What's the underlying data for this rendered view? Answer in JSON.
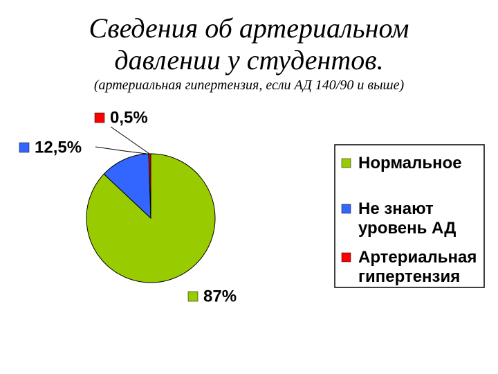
{
  "chart_data": {
    "type": "pie",
    "title": "Сведения об артериальном давлении у студентов.",
    "subtitle": "(артериальная гипертензия, если АД 140/90 и выше)",
    "categories": [
      "Нормальное",
      "Не знают уровень АД",
      "Артериальная гипертензия"
    ],
    "values": [
      87,
      12.5,
      0.5
    ],
    "value_labels": [
      "87%",
      "12,5%",
      "0,5%"
    ],
    "colors": [
      "#99cc00",
      "#3366ff",
      "#ff0000"
    ]
  }
}
